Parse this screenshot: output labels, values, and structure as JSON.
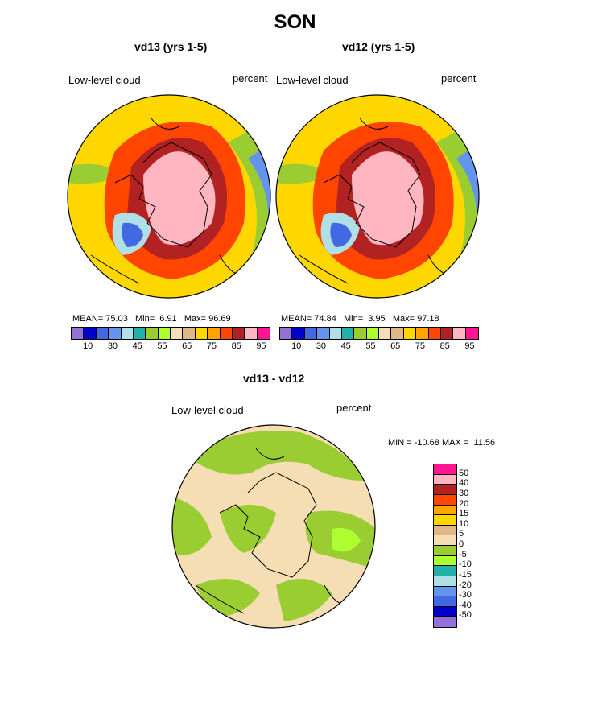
{
  "page_title": "SON",
  "panels": [
    {
      "title": "vd13 (yrs 1-5)",
      "field_label": "Low-level cloud",
      "units": "percent",
      "stats": {
        "mean_label": "MEAN=",
        "mean": "75.03",
        "min_label": "Min=",
        "min": "6.91",
        "max_label": "Max=",
        "max": "96.69"
      }
    },
    {
      "title": "vd12 (yrs 1-5)",
      "field_label": "Low-level cloud",
      "units": "percent",
      "stats": {
        "mean_label": "MEAN=",
        "mean": "74.84",
        "min_label": "Min=",
        "min": "3.95",
        "max_label": "Max=",
        "max": "97.18"
      }
    }
  ],
  "top_colorbar": {
    "colors": [
      "#9370db",
      "#0000cd",
      "#4169e1",
      "#6495ed",
      "#b0e0e6",
      "#20b2aa",
      "#9acd32",
      "#adff2f",
      "#f5deb3",
      "#deb887",
      "#ffd700",
      "#ffa500",
      "#ff4500",
      "#b22222",
      "#ffb6c1",
      "#ff1493"
    ],
    "ticks": [
      "10",
      "30",
      "45",
      "55",
      "65",
      "75",
      "85",
      "95"
    ]
  },
  "diff_panel": {
    "title": "vd13 - vd12",
    "field_label": "Low-level cloud",
    "units": "percent",
    "min_label": "MIN =",
    "min": "-10.68",
    "max_label": "MAX =",
    "max": "11.56"
  },
  "diff_colorbar": {
    "colors": [
      "#ff1493",
      "#ffb6c1",
      "#b22222",
      "#ff4500",
      "#ffa500",
      "#ffd700",
      "#deb887",
      "#f5deb3",
      "#9acd32",
      "#adff2f",
      "#20b2aa",
      "#b0e0e6",
      "#6495ed",
      "#4169e1",
      "#0000cd",
      "#9370db"
    ],
    "ticks": [
      "50",
      "40",
      "30",
      "20",
      "15",
      "10",
      "5",
      "0",
      "-5",
      "-10",
      "-15",
      "-20",
      "-30",
      "-40",
      "-50"
    ]
  }
}
